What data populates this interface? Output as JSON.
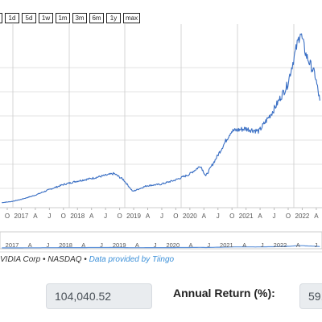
{
  "range_buttons": [
    "",
    "1d",
    "5d",
    "1w",
    "1m",
    "3m",
    "6m",
    "1y",
    "max"
  ],
  "footer": {
    "source": "VIDIA Corp",
    "separator_1": "•",
    "exchange": "NASDAQ",
    "separator_2": "•",
    "provider_link": "Data provided by Tiingo"
  },
  "stats": {
    "value_box": "104,040.52",
    "annual_return_label": "Annual Return (%):",
    "annual_return_value": "59."
  },
  "colors": {
    "series": "#3a6fc4",
    "navigator": "#5a8fd8",
    "grid": "#e3e3e3",
    "link": "#3a8fd8"
  },
  "chart_data": {
    "type": "line",
    "series": [
      {
        "values": [
          [
            "2016-08-01",
            1.0
          ],
          [
            "2016-10-01",
            1.2
          ],
          [
            "2016-12-01",
            1.6
          ],
          [
            "2017-03-01",
            2.4
          ],
          [
            "2017-06-01",
            3.5
          ],
          [
            "2017-09-01",
            4.5
          ],
          [
            "2017-12-01",
            5.2
          ],
          [
            "2018-03-01",
            5.7
          ],
          [
            "2018-06-01",
            6.3
          ],
          [
            "2018-08-01",
            6.7
          ],
          [
            "2018-10-01",
            5.5
          ],
          [
            "2018-12-01",
            3.2
          ],
          [
            "2019-03-01",
            4.3
          ],
          [
            "2019-06-01",
            4.6
          ],
          [
            "2019-09-01",
            5.4
          ],
          [
            "2019-12-01",
            6.5
          ],
          [
            "2020-02-15",
            8.2
          ],
          [
            "2020-03-20",
            6.2
          ],
          [
            "2020-06-01",
            10.0
          ],
          [
            "2020-09-01",
            15.0
          ],
          [
            "2020-12-01",
            15.5
          ],
          [
            "2021-03-01",
            15.0
          ],
          [
            "2021-06-01",
            19.0
          ],
          [
            "2021-09-01",
            24.0
          ],
          [
            "2021-11-25",
            34.5
          ],
          [
            "2022-01-01",
            30.0
          ],
          [
            "2022-03-01",
            26.0
          ],
          [
            "2022-04-01",
            21.0
          ]
        ]
      }
    ],
    "x_tick_labels": [
      "O",
      "2017",
      "A",
      "J",
      "O",
      "2018",
      "A",
      "J",
      "O",
      "2019",
      "A",
      "J",
      "O",
      "2020",
      "A",
      "J",
      "O",
      "2021",
      "A",
      "J",
      "O",
      "2022",
      "A"
    ],
    "navigator_labels": [
      "2017",
      "A",
      "J",
      "2018",
      "A",
      "J",
      "2019",
      "A",
      "J",
      "2020",
      "A",
      "J",
      "2021",
      "A",
      "J",
      "2022",
      "A",
      "J"
    ],
    "grid": true
  }
}
